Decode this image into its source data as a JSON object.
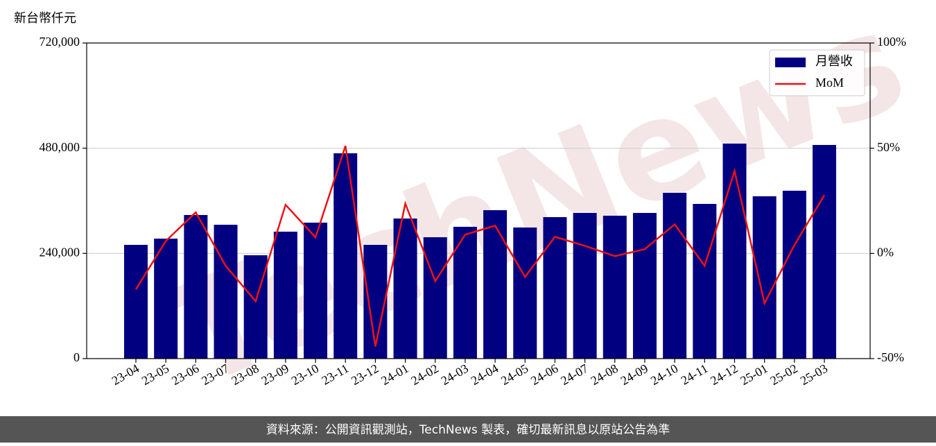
{
  "chart_data": {
    "type": "bar_line",
    "y_label": "新台幣仟元",
    "watermark": "TechNews",
    "footer": "資料來源：公開資訊觀測站，TechNews 製表，確切最新訊息以原站公告為準",
    "categories": [
      "23-04",
      "23-05",
      "23-06",
      "23-07",
      "23-08",
      "23-09",
      "23-10",
      "23-11",
      "23-12",
      "24-01",
      "24-02",
      "24-03",
      "24-04",
      "24-05",
      "24-06",
      "24-07",
      "24-08",
      "24-09",
      "24-10",
      "24-11",
      "24-12",
      "25-01",
      "25-02",
      "25-03"
    ],
    "series": [
      {
        "name": "月營收",
        "type": "bar",
        "color": "#000080",
        "axis": "y",
        "values": [
          259500,
          273700,
          327600,
          305400,
          235800,
          289600,
          310200,
          468400,
          259500,
          319600,
          276900,
          300700,
          338600,
          299100,
          322800,
          332300,
          326000,
          332300,
          378200,
          352900,
          490500,
          370300,
          383000,
          487400
        ]
      },
      {
        "name": "MoM",
        "type": "line",
        "color": "#ee1111",
        "axis": "y2",
        "values": [
          -17.1,
          5.9,
          19.5,
          -5.9,
          -22.7,
          23.1,
          7.6,
          51.1,
          -44.2,
          23.7,
          -13.2,
          8.9,
          13.2,
          -11.2,
          7.9,
          3.6,
          -1.3,
          2.0,
          13.8,
          -5.9,
          39.2,
          -23.7,
          4.0,
          27.7
        ]
      }
    ],
    "ylim": [
      0,
      720000
    ],
    "yticks": [
      0,
      {
        "value": 240000,
        "label": "240,000"
      },
      {
        "value": 480000,
        "label": "480,000"
      },
      {
        "value": 720000,
        "label": "720,000"
      }
    ],
    "y2lim": [
      -50,
      100
    ],
    "y2ticks": [
      {
        "value": -50,
        "label": "-50%"
      },
      {
        "value": 0,
        "label": "0%"
      },
      {
        "value": 50,
        "label": "50%"
      },
      {
        "value": 100,
        "label": "100%"
      }
    ],
    "grid": true,
    "legend": "upper right"
  }
}
